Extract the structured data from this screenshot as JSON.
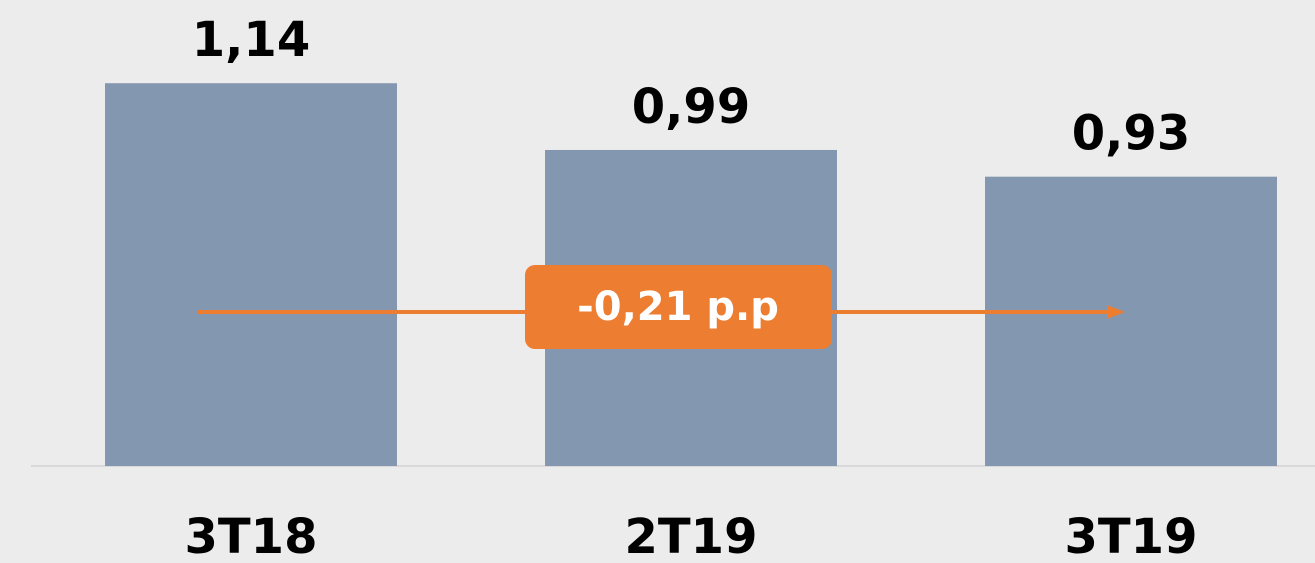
{
  "chart_data": {
    "type": "bar",
    "categories": [
      "3T18",
      "2T19",
      "3T19"
    ],
    "values": [
      1.14,
      0.99,
      0.93
    ],
    "value_labels": [
      "1,14",
      "0,99",
      "0,93"
    ],
    "color": "#8497b0",
    "ylim": [
      0.28,
      1.3
    ],
    "annotation": "-0,21 p.p",
    "annotation_color": "#ed7d31"
  }
}
